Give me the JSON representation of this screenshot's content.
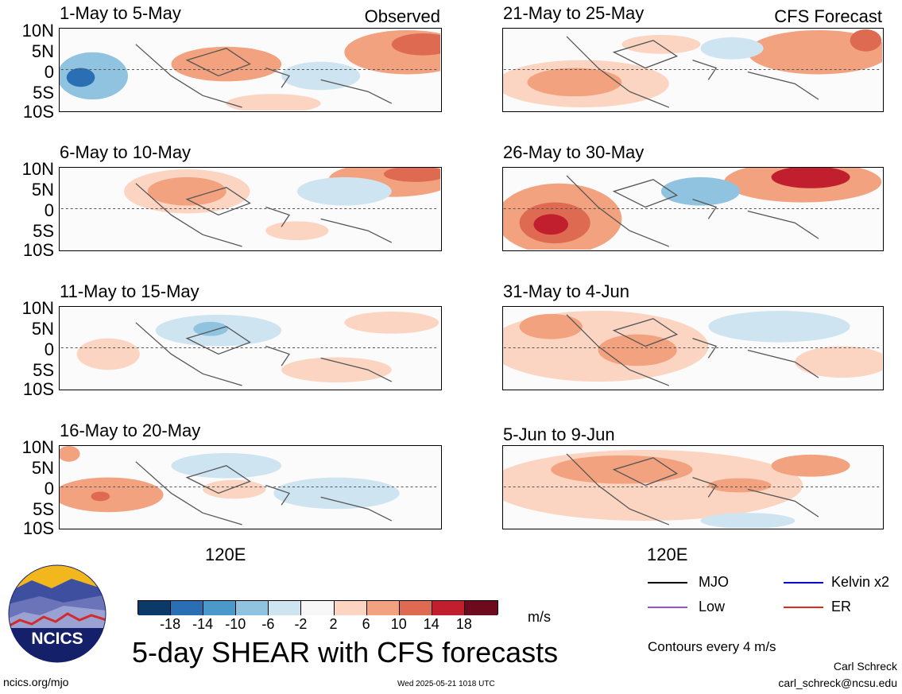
{
  "panels": [
    {
      "period": "1-May to 5-May",
      "tag": "Observed"
    },
    {
      "period": "21-May to 25-May",
      "tag": "CFS Forecast"
    },
    {
      "period": "6-May to 10-May",
      "tag": ""
    },
    {
      "period": "26-May to 30-May",
      "tag": ""
    },
    {
      "period": "11-May to 15-May",
      "tag": ""
    },
    {
      "period": "31-May to 4-Jun",
      "tag": ""
    },
    {
      "period": "16-May to 20-May",
      "tag": ""
    },
    {
      "period": "5-Jun to 9-Jun",
      "tag": ""
    }
  ],
  "lat_labels": [
    "10N",
    "5N",
    "0",
    "5S",
    "10S"
  ],
  "lon_label": "120E",
  "colorbar": {
    "colors": [
      "#0b3a68",
      "#2a6fb4",
      "#4b98cb",
      "#8fc3e0",
      "#cfe4f1",
      "#f7f7f7",
      "#fbd5c2",
      "#f2a27e",
      "#df6a52",
      "#c11f2d",
      "#6d0a1e"
    ],
    "ticks": [
      "-18",
      "-14",
      "-10",
      "-6",
      "-2",
      "2",
      "6",
      "10",
      "14",
      "18"
    ],
    "units": "m/s"
  },
  "legend": {
    "items": [
      {
        "label": "MJO",
        "color": "#000000"
      },
      {
        "label": "Kelvin x2",
        "color": "#0000cc"
      },
      {
        "label": "Low",
        "color": "#9b4fd6"
      },
      {
        "label": "ER",
        "color": "#e02a1c"
      }
    ],
    "contour_note": "Contours every 4 m/s"
  },
  "logo_text": "NCICS",
  "title": "5-day SHEAR with CFS forecasts",
  "footer": {
    "left": "ncics.org/mjo",
    "center": "Wed 2025-05-21 1018 UTC",
    "author": "Carl Schreck",
    "email": "carl_schreck@ncsu.edu"
  }
}
